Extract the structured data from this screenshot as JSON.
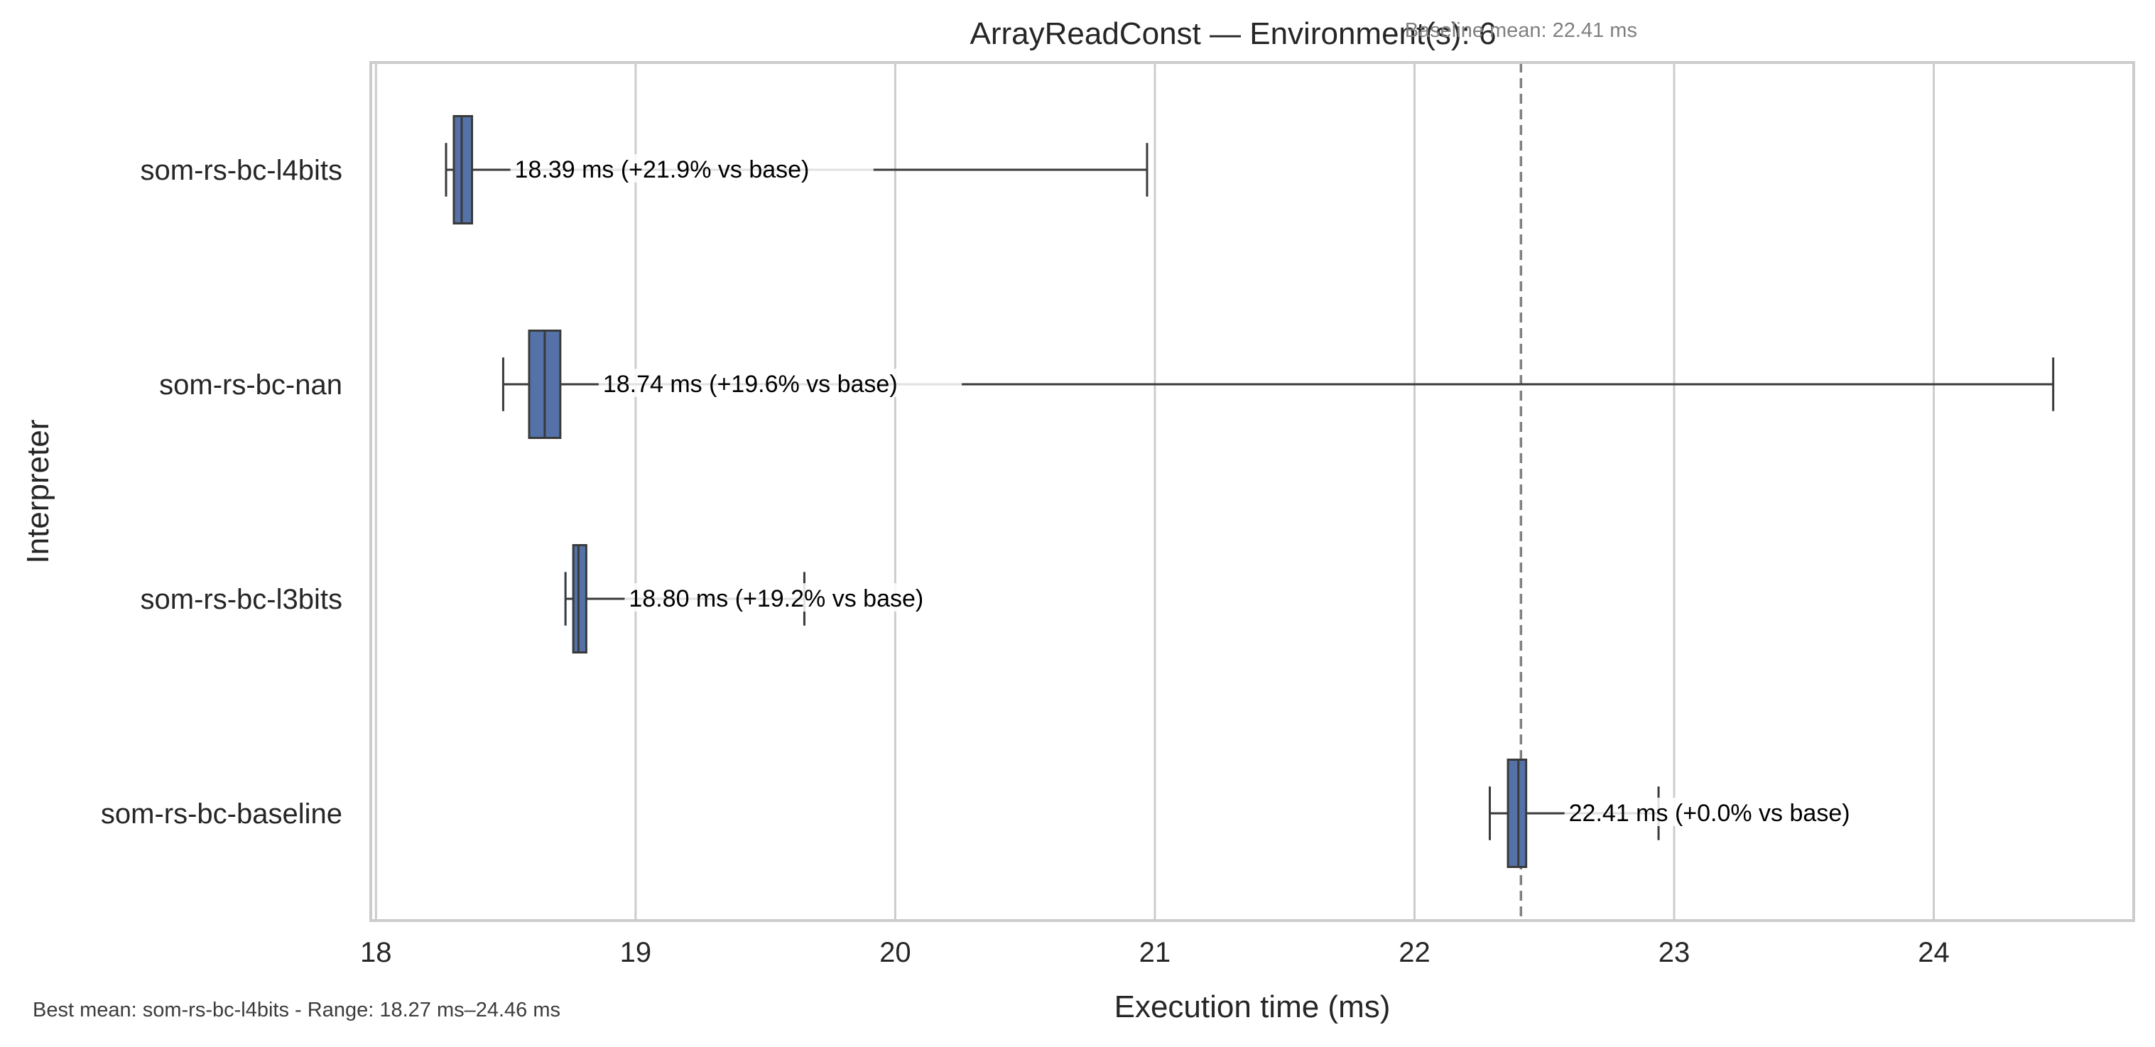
{
  "footnote": "Best mean: som-rs-bc-l4bits - Range: 18.27 ms–24.46 ms",
  "colors": {
    "box_fill": "#5572a8",
    "box_edge": "#3a3a3a",
    "grid": "#cccccc",
    "frame": "#cccccc",
    "baseline_line": "#808080",
    "annotation": "#000000",
    "baseline_label": "#808080"
  },
  "chart_data": {
    "type": "boxplot",
    "orientation": "horizontal",
    "title": "ArrayReadConst — Environment(s): 6",
    "xlabel": "Execution time (ms)",
    "ylabel": "Interpreter",
    "xlim": [
      17.98,
      24.77
    ],
    "xticks": [
      18,
      19,
      20,
      21,
      22,
      23,
      24
    ],
    "grid": "vertical",
    "baseline": {
      "value": 22.41,
      "label": "Baseline mean: 22.41 ms"
    },
    "categories": [
      "som-rs-bc-l4bits",
      "som-rs-bc-nan",
      "som-rs-bc-l3bits",
      "som-rs-bc-baseline"
    ],
    "boxes": [
      {
        "name": "som-rs-bc-l4bits",
        "whisker_low": 18.27,
        "q1": 18.3,
        "median": 18.33,
        "q3": 18.37,
        "whisker_high": 20.97,
        "label": "18.39 ms  (+21.9% vs base)"
      },
      {
        "name": "som-rs-bc-nan",
        "whisker_low": 18.49,
        "q1": 18.59,
        "median": 18.65,
        "q3": 18.71,
        "whisker_high": 24.46,
        "label": "18.74 ms  (+19.6% vs base)"
      },
      {
        "name": "som-rs-bc-l3bits",
        "whisker_low": 18.73,
        "q1": 18.76,
        "median": 18.78,
        "q3": 18.81,
        "whisker_high": 19.65,
        "label": "18.80 ms  (+19.2% vs base)"
      },
      {
        "name": "som-rs-bc-baseline",
        "whisker_low": 22.29,
        "q1": 22.36,
        "median": 22.4,
        "q3": 22.43,
        "whisker_high": 22.94,
        "label": "22.41 ms  (+0.0% vs base)"
      }
    ]
  }
}
